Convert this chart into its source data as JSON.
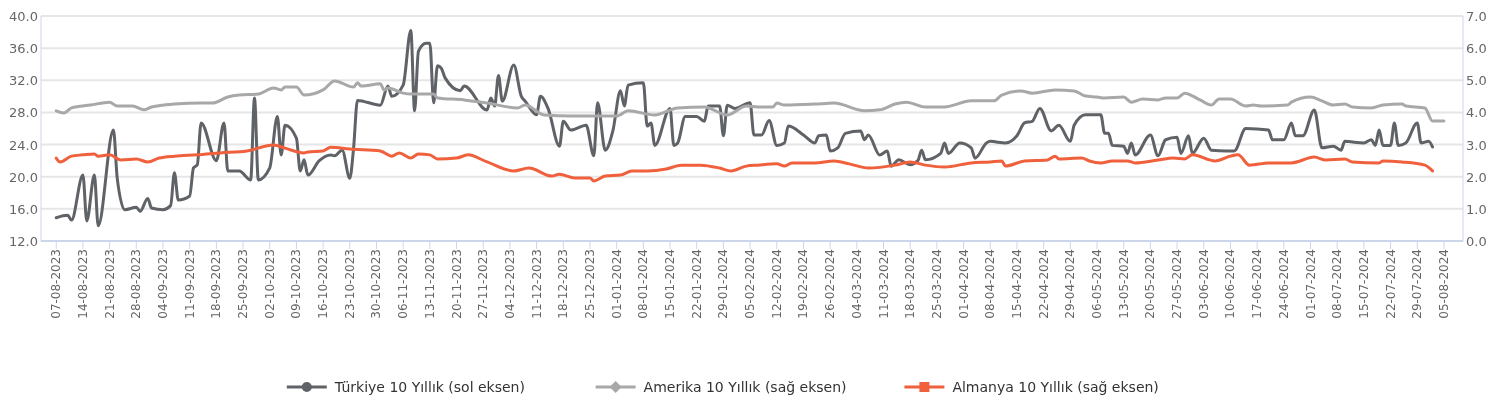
{
  "chart_data": {
    "type": "line",
    "grid": "y",
    "legend": "bottom",
    "line_style": "solid",
    "xlim": [
      "2023-08-03",
      "2024-08-10"
    ],
    "xticks": [
      {
        "value": "2023-08-07",
        "label": "07-08-2023"
      },
      {
        "value": "2023-08-14",
        "label": "14-08-2023"
      },
      {
        "value": "2023-08-21",
        "label": "21-08-2023"
      },
      {
        "value": "2023-08-28",
        "label": "28-08-2023"
      },
      {
        "value": "2023-09-04",
        "label": "04-09-2023"
      },
      {
        "value": "2023-09-11",
        "label": "11-09-2023"
      },
      {
        "value": "2023-09-18",
        "label": "18-09-2023"
      },
      {
        "value": "2023-09-25",
        "label": "25-09-2023"
      },
      {
        "value": "2023-10-02",
        "label": "02-10-2023"
      },
      {
        "value": "2023-10-09",
        "label": "09-10-2023"
      },
      {
        "value": "2023-10-16",
        "label": "16-10-2023"
      },
      {
        "value": "2023-10-23",
        "label": "23-10-2023"
      },
      {
        "value": "2023-10-30",
        "label": "30-10-2023"
      },
      {
        "value": "2023-11-06",
        "label": "06-11-2023"
      },
      {
        "value": "2023-11-13",
        "label": "13-11-2023"
      },
      {
        "value": "2023-11-20",
        "label": "20-11-2023"
      },
      {
        "value": "2023-11-27",
        "label": "27-11-2023"
      },
      {
        "value": "2023-12-04",
        "label": "04-12-2023"
      },
      {
        "value": "2023-12-11",
        "label": "11-12-2023"
      },
      {
        "value": "2023-12-18",
        "label": "18-12-2023"
      },
      {
        "value": "2023-12-25",
        "label": "25-12-2023"
      },
      {
        "value": "2024-01-01",
        "label": "01-01-2024"
      },
      {
        "value": "2024-01-08",
        "label": "08-01-2024"
      },
      {
        "value": "2024-01-15",
        "label": "15-01-2024"
      },
      {
        "value": "2024-01-22",
        "label": "22-01-2024"
      },
      {
        "value": "2024-01-29",
        "label": "29-01-2024"
      },
      {
        "value": "2024-02-05",
        "label": "05-02-2024"
      },
      {
        "value": "2024-02-12",
        "label": "12-02-2024"
      },
      {
        "value": "2024-02-19",
        "label": "19-02-2024"
      },
      {
        "value": "2024-02-26",
        "label": "26-02-2024"
      },
      {
        "value": "2024-03-04",
        "label": "04-03-2024"
      },
      {
        "value": "2024-03-11",
        "label": "11-03-2024"
      },
      {
        "value": "2024-03-18",
        "label": "18-03-2024"
      },
      {
        "value": "2024-03-25",
        "label": "25-03-2024"
      },
      {
        "value": "2024-04-01",
        "label": "01-04-2024"
      },
      {
        "value": "2024-04-08",
        "label": "08-04-2024"
      },
      {
        "value": "2024-04-15",
        "label": "15-04-2024"
      },
      {
        "value": "2024-04-22",
        "label": "22-04-2024"
      },
      {
        "value": "2024-04-29",
        "label": "29-04-2024"
      },
      {
        "value": "2024-05-06",
        "label": "06-05-2024"
      },
      {
        "value": "2024-05-13",
        "label": "13-05-2024"
      },
      {
        "value": "2024-05-20",
        "label": "20-05-2024"
      },
      {
        "value": "2024-05-27",
        "label": "27-05-2024"
      },
      {
        "value": "2024-06-03",
        "label": "03-06-2024"
      },
      {
        "value": "2024-06-10",
        "label": "10-06-2024"
      },
      {
        "value": "2024-06-17",
        "label": "17-06-2024"
      },
      {
        "value": "2024-06-24",
        "label": "24-06-2024"
      },
      {
        "value": "2024-07-01",
        "label": "01-07-2024"
      },
      {
        "value": "2024-07-08",
        "label": "08-07-2024"
      },
      {
        "value": "2024-07-15",
        "label": "15-07-2024"
      },
      {
        "value": "2024-07-22",
        "label": "22-07-2024"
      },
      {
        "value": "2024-07-29",
        "label": "29-07-2024"
      },
      {
        "value": "2024-08-05",
        "label": "05-08-2024"
      }
    ],
    "ylim": [
      12,
      40
    ],
    "yticks": [
      {
        "value": 12,
        "label": "12.0"
      },
      {
        "value": 16,
        "label": "16.0"
      },
      {
        "value": 20,
        "label": "20.0"
      },
      {
        "value": 24,
        "label": "24.0"
      },
      {
        "value": 28,
        "label": "28.0"
      },
      {
        "value": 32,
        "label": "32.0"
      },
      {
        "value": 36,
        "label": "36.0"
      },
      {
        "value": 40,
        "label": "40.0"
      }
    ],
    "y2lim": [
      0,
      7
    ],
    "y2ticks": [
      {
        "value": 0,
        "label": "0.0"
      },
      {
        "value": 1,
        "label": "1.0"
      },
      {
        "value": 2,
        "label": "2.0"
      },
      {
        "value": 3,
        "label": "3.0"
      },
      {
        "value": 4,
        "label": "4.0"
      },
      {
        "value": 5,
        "label": "5.0"
      },
      {
        "value": 6,
        "label": "6.0"
      },
      {
        "value": 7,
        "label": "7.0"
      }
    ],
    "series": [
      {
        "name": "Türkiye 10 Yıllık (sol eksen)",
        "color": "#5f6266",
        "x": [
          "2023-08-07",
          "2023-08-10",
          "2023-08-11",
          "2023-08-14",
          "2023-08-15",
          "2023-08-17",
          "2023-08-18",
          "2023-08-22",
          "2023-08-23",
          "2023-08-25",
          "2023-08-28",
          "2023-08-29",
          "2023-08-31",
          "2023-09-01",
          "2023-09-04",
          "2023-09-06",
          "2023-09-07",
          "2023-09-08",
          "2023-09-11",
          "2023-09-12",
          "2023-09-13",
          "2023-09-14",
          "2023-09-18",
          "2023-09-20",
          "2023-09-21",
          "2023-09-24",
          "2023-09-27",
          "2023-09-28",
          "2023-09-29",
          "2023-10-02",
          "2023-10-04",
          "2023-10-05",
          "2023-10-06",
          "2023-10-09",
          "2023-10-10",
          "2023-10-11",
          "2023-10-12",
          "2023-10-15",
          "2023-10-18",
          "2023-10-19",
          "2023-10-21",
          "2023-10-23",
          "2023-10-24",
          "2023-10-25",
          "2023-10-31",
          "2023-11-02",
          "2023-11-03",
          "2023-11-06",
          "2023-11-08",
          "2023-11-09",
          "2023-11-10",
          "2023-11-12",
          "2023-11-13",
          "2023-11-14",
          "2023-11-15",
          "2023-11-16",
          "2023-11-17",
          "2023-11-21",
          "2023-11-22",
          "2023-11-28",
          "2023-11-29",
          "2023-11-30",
          "2023-12-01",
          "2023-12-02",
          "2023-12-05",
          "2023-12-07",
          "2023-12-08",
          "2023-12-11",
          "2023-12-12",
          "2023-12-14",
          "2023-12-17",
          "2023-12-18",
          "2023-12-20",
          "2023-12-24",
          "2023-12-26",
          "2023-12-27",
          "2023-12-29",
          "2023-12-31",
          "2024-01-02",
          "2024-01-03",
          "2024-01-04",
          "2024-01-08",
          "2024-01-09",
          "2024-01-10",
          "2024-01-11",
          "2024-01-15",
          "2024-01-16",
          "2024-01-17",
          "2024-01-19",
          "2024-01-22",
          "2024-01-24",
          "2024-01-25",
          "2024-01-28",
          "2024-01-29",
          "2024-01-30",
          "2024-02-01",
          "2024-02-05",
          "2024-02-06",
          "2024-02-08",
          "2024-02-10",
          "2024-02-12",
          "2024-02-14",
          "2024-02-15",
          "2024-02-19",
          "2024-02-22",
          "2024-02-23",
          "2024-02-25",
          "2024-02-26",
          "2024-02-28",
          "2024-03-01",
          "2024-03-05",
          "2024-03-06",
          "2024-03-07",
          "2024-03-10",
          "2024-03-12",
          "2024-03-13",
          "2024-03-15",
          "2024-03-18",
          "2024-03-20",
          "2024-03-21",
          "2024-03-22",
          "2024-03-26",
          "2024-03-27",
          "2024-03-28",
          "2024-03-31",
          "2024-04-03",
          "2024-04-04",
          "2024-04-07",
          "2024-04-08",
          "2024-04-12",
          "2024-04-15",
          "2024-04-17",
          "2024-04-19",
          "2024-04-21",
          "2024-04-24",
          "2024-04-26",
          "2024-04-29",
          "2024-04-30",
          "2024-05-03",
          "2024-05-07",
          "2024-05-08",
          "2024-05-09",
          "2024-05-10",
          "2024-05-13",
          "2024-05-14",
          "2024-05-15",
          "2024-05-16",
          "2024-05-20",
          "2024-05-22",
          "2024-05-24",
          "2024-05-27",
          "2024-05-28",
          "2024-05-30",
          "2024-05-31",
          "2024-06-03",
          "2024-06-05",
          "2024-06-09",
          "2024-06-11",
          "2024-06-14",
          "2024-06-20",
          "2024-06-21",
          "2024-06-24",
          "2024-06-26",
          "2024-06-27",
          "2024-06-29",
          "2024-07-02",
          "2024-07-04",
          "2024-07-07",
          "2024-07-09",
          "2024-07-10",
          "2024-07-15",
          "2024-07-17",
          "2024-07-18",
          "2024-07-19",
          "2024-07-20",
          "2024-07-22",
          "2024-07-23",
          "2024-07-24",
          "2024-07-26",
          "2024-07-29",
          "2024-07-30",
          "2024-08-01",
          "2024-08-02"
        ],
        "values": [
          14.9,
          15.2,
          14.6,
          20.2,
          14.5,
          20.2,
          13.9,
          25.8,
          19.8,
          15.9,
          16.2,
          15.7,
          17.3,
          16.1,
          15.9,
          16.4,
          20.5,
          17.1,
          17.6,
          21.1,
          21.5,
          26.7,
          22.0,
          26.7,
          20.7,
          20.7,
          19.6,
          29.8,
          19.6,
          21.1,
          27.5,
          22.7,
          26.4,
          24.8,
          20.7,
          22.1,
          20.2,
          22.0,
          22.7,
          22.6,
          23.3,
          19.8,
          23.6,
          29.5,
          28.9,
          31.3,
          30.0,
          31.4,
          38.2,
          28.2,
          35.6,
          36.6,
          36.6,
          29.2,
          33.8,
          33.5,
          32.3,
          30.7,
          31.3,
          28.3,
          29.8,
          28.8,
          32.6,
          29.4,
          33.9,
          30.0,
          29.4,
          27.7,
          30.0,
          28.5,
          23.8,
          26.9,
          25.8,
          26.4,
          22.6,
          29.2,
          23.3,
          25.7,
          30.7,
          28.8,
          31.4,
          31.7,
          26.3,
          26.7,
          23.9,
          28.5,
          23.9,
          24.2,
          27.5,
          27.5,
          26.9,
          28.8,
          28.8,
          25.1,
          28.9,
          28.5,
          29.2,
          25.2,
          25.2,
          27.0,
          23.9,
          24.2,
          26.3,
          25.2,
          24.2,
          25.1,
          25.2,
          23.2,
          23.6,
          25.4,
          25.7,
          24.6,
          25.2,
          22.7,
          23.2,
          21.3,
          22.1,
          21.5,
          22.0,
          23.3,
          22.1,
          22.9,
          24.2,
          22.9,
          24.2,
          23.6,
          22.3,
          24.2,
          24.4,
          24.2,
          25.1,
          26.7,
          26.9,
          28.5,
          25.7,
          26.4,
          24.4,
          26.4,
          27.7,
          27.7,
          25.4,
          25.4,
          23.9,
          23.8,
          22.9,
          24.2,
          22.7,
          25.2,
          22.6,
          24.6,
          24.9,
          22.9,
          25.1,
          22.9,
          24.8,
          23.3,
          23.2,
          23.2,
          26.0,
          25.8,
          24.6,
          24.6,
          26.7,
          25.1,
          25.1,
          28.3,
          23.6,
          23.8,
          23.3,
          24.4,
          24.2,
          24.6,
          23.9,
          25.8,
          23.9,
          23.9,
          26.7,
          23.9,
          24.2,
          26.7,
          24.2,
          24.4,
          23.7
        ]
      },
      {
        "name": "Amerika 10 Yıllık (sağ eksen)",
        "color": "#a8a8a8",
        "axis": "y2",
        "x": [
          "2023-08-07",
          "2023-08-09",
          "2023-08-11",
          "2023-08-16",
          "2023-08-21",
          "2023-08-23",
          "2023-08-27",
          "2023-08-30",
          "2023-09-01",
          "2023-09-07",
          "2023-09-14",
          "2023-09-17",
          "2023-09-21",
          "2023-09-24",
          "2023-09-29",
          "2023-10-03",
          "2023-10-05",
          "2023-10-06",
          "2023-10-09",
          "2023-10-11",
          "2023-10-16",
          "2023-10-19",
          "2023-10-24",
          "2023-10-25",
          "2023-10-26",
          "2023-10-31",
          "2023-11-01",
          "2023-11-02",
          "2023-11-06",
          "2023-11-08",
          "2023-11-14",
          "2023-11-15",
          "2023-11-22",
          "2023-11-28",
          "2023-12-06",
          "2023-12-08",
          "2023-12-13",
          "2023-12-20",
          "2024-01-01",
          "2024-01-04",
          "2024-01-11",
          "2024-01-17",
          "2024-01-24",
          "2024-01-30",
          "2024-02-04",
          "2024-02-07",
          "2024-02-11",
          "2024-02-12",
          "2024-02-14",
          "2024-02-22",
          "2024-02-27",
          "2024-03-06",
          "2024-03-10",
          "2024-03-14",
          "2024-03-17",
          "2024-03-22",
          "2024-03-27",
          "2024-04-03",
          "2024-04-09",
          "2024-04-11",
          "2024-04-16",
          "2024-04-19",
          "2024-04-25",
          "2024-04-30",
          "2024-05-03",
          "2024-05-06",
          "2024-05-08",
          "2024-05-13",
          "2024-05-15",
          "2024-05-18",
          "2024-05-22",
          "2024-05-24",
          "2024-05-27",
          "2024-05-29",
          "2024-06-02",
          "2024-06-05",
          "2024-06-07",
          "2024-06-10",
          "2024-06-14",
          "2024-06-16",
          "2024-06-18",
          "2024-06-25",
          "2024-06-26",
          "2024-07-01",
          "2024-07-04",
          "2024-07-07",
          "2024-07-10",
          "2024-07-12",
          "2024-07-17",
          "2024-07-20",
          "2024-07-25",
          "2024-07-26",
          "2024-07-31",
          "2024-08-02",
          "2024-08-05"
        ],
        "values": [
          4.05,
          3.98,
          4.14,
          4.23,
          4.32,
          4.2,
          4.2,
          4.08,
          4.17,
          4.26,
          4.29,
          4.29,
          4.48,
          4.54,
          4.57,
          4.76,
          4.7,
          4.79,
          4.79,
          4.54,
          4.7,
          4.98,
          4.79,
          4.92,
          4.82,
          4.89,
          4.7,
          4.76,
          4.6,
          4.57,
          4.57,
          4.45,
          4.39,
          4.29,
          4.14,
          4.23,
          3.92,
          3.89,
          3.89,
          4.05,
          3.92,
          4.14,
          4.17,
          3.92,
          4.2,
          4.17,
          4.17,
          4.29,
          4.23,
          4.26,
          4.29,
          4.05,
          4.08,
          4.26,
          4.32,
          4.17,
          4.17,
          4.36,
          4.36,
          4.54,
          4.67,
          4.6,
          4.7,
          4.67,
          4.51,
          4.48,
          4.45,
          4.48,
          4.32,
          4.42,
          4.39,
          4.45,
          4.45,
          4.6,
          4.39,
          4.23,
          4.42,
          4.42,
          4.2,
          4.23,
          4.2,
          4.23,
          4.32,
          4.48,
          4.36,
          4.23,
          4.26,
          4.17,
          4.14,
          4.23,
          4.26,
          4.2,
          4.14,
          3.73,
          3.73
        ]
      },
      {
        "name": "Almanya 10 Yıllık (sağ eksen)",
        "color": "#f0603c",
        "axis": "y2",
        "x": [
          "2023-08-07",
          "2023-08-08",
          "2023-08-11",
          "2023-08-14",
          "2023-08-17",
          "2023-08-18",
          "2023-08-21",
          "2023-08-24",
          "2023-08-28",
          "2023-08-31",
          "2023-09-03",
          "2023-09-07",
          "2023-09-13",
          "2023-09-19",
          "2023-09-26",
          "2023-10-03",
          "2023-10-06",
          "2023-10-11",
          "2023-10-12",
          "2023-10-16",
          "2023-10-18",
          "2023-10-23",
          "2023-10-31",
          "2023-11-03",
          "2023-11-05",
          "2023-11-08",
          "2023-11-10",
          "2023-11-13",
          "2023-11-15",
          "2023-11-20",
          "2023-11-23",
          "2023-11-28",
          "2023-12-05",
          "2023-12-09",
          "2023-12-15",
          "2023-12-17",
          "2023-12-21",
          "2023-12-25",
          "2023-12-26",
          "2023-12-29",
          "2024-01-02",
          "2024-01-05",
          "2024-01-09",
          "2024-01-14",
          "2024-01-18",
          "2024-01-23",
          "2024-01-28",
          "2024-01-31",
          "2024-02-04",
          "2024-02-07",
          "2024-02-12",
          "2024-02-14",
          "2024-02-16",
          "2024-02-22",
          "2024-02-27",
          "2024-03-02",
          "2024-03-07",
          "2024-03-14",
          "2024-03-18",
          "2024-03-22",
          "2024-03-27",
          "2024-04-03",
          "2024-04-08",
          "2024-04-11",
          "2024-04-12",
          "2024-04-17",
          "2024-04-23",
          "2024-04-25",
          "2024-04-26",
          "2024-05-02",
          "2024-05-04",
          "2024-05-07",
          "2024-05-10",
          "2024-05-14",
          "2024-05-16",
          "2024-05-22",
          "2024-05-26",
          "2024-05-29",
          "2024-05-31",
          "2024-06-06",
          "2024-06-10",
          "2024-06-12",
          "2024-06-15",
          "2024-06-20",
          "2024-06-26",
          "2024-07-02",
          "2024-07-05",
          "2024-07-10",
          "2024-07-12",
          "2024-07-19",
          "2024-07-20",
          "2024-07-25",
          "2024-07-31",
          "2024-08-02"
        ],
        "values": [
          2.58,
          2.46,
          2.64,
          2.68,
          2.71,
          2.64,
          2.68,
          2.52,
          2.55,
          2.46,
          2.58,
          2.64,
          2.68,
          2.74,
          2.8,
          2.99,
          2.89,
          2.74,
          2.77,
          2.8,
          2.92,
          2.86,
          2.8,
          2.64,
          2.74,
          2.58,
          2.71,
          2.68,
          2.55,
          2.58,
          2.68,
          2.46,
          2.18,
          2.27,
          2.02,
          2.08,
          1.96,
          1.96,
          1.87,
          2.02,
          2.05,
          2.18,
          2.18,
          2.24,
          2.36,
          2.36,
          2.27,
          2.18,
          2.33,
          2.36,
          2.4,
          2.33,
          2.43,
          2.43,
          2.49,
          2.4,
          2.27,
          2.36,
          2.46,
          2.36,
          2.3,
          2.43,
          2.46,
          2.49,
          2.33,
          2.49,
          2.52,
          2.64,
          2.55,
          2.58,
          2.49,
          2.43,
          2.49,
          2.49,
          2.43,
          2.52,
          2.58,
          2.55,
          2.68,
          2.49,
          2.64,
          2.68,
          2.36,
          2.43,
          2.43,
          2.61,
          2.52,
          2.55,
          2.46,
          2.43,
          2.49,
          2.46,
          2.36,
          2.18
        ]
      }
    ]
  }
}
